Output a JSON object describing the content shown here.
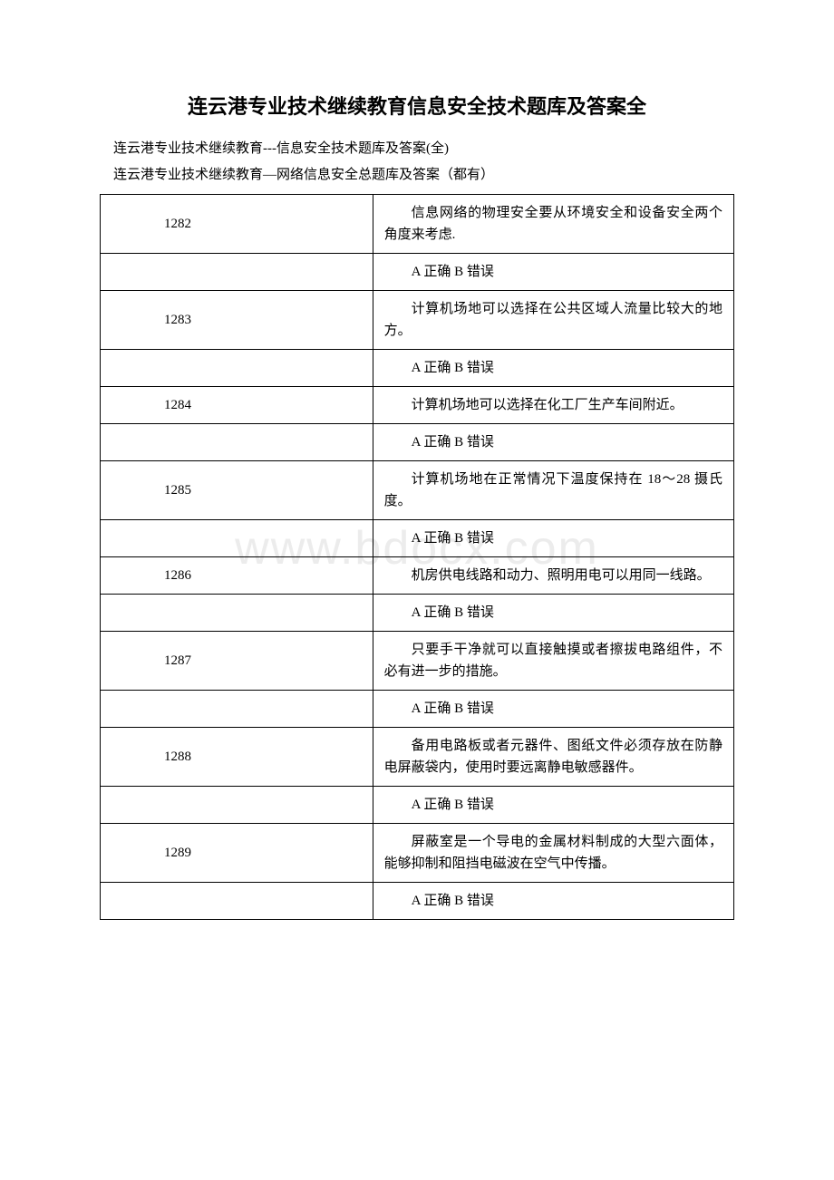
{
  "title": "连云港专业技术继续教育信息安全技术题库及答案全",
  "subtitle1": "连云港专业技术继续教育---信息安全技术题库及答案(全)",
  "subtitle2": "连云港专业技术继续教育—网络信息安全总题库及答案（都有）",
  "watermark": "www.bdocx.com",
  "answer_label": "A 正确 B 错误",
  "rows": [
    {
      "num": "1282",
      "question": "信息网络的物理安全要从环境安全和设备安全两个角度来考虑."
    },
    {
      "num": "1283",
      "question": "计算机场地可以选择在公共区域人流量比较大的地方。"
    },
    {
      "num": "1284",
      "question": "计算机场地可以选择在化工厂生产车间附近。"
    },
    {
      "num": "1285",
      "question": "计算机场地在正常情况下温度保持在 18～28 摄氏度。"
    },
    {
      "num": "1286",
      "question": "机房供电线路和动力、照明用电可以用同一线路。"
    },
    {
      "num": "1287",
      "question": "只要手干净就可以直接触摸或者擦拔电路组件，不必有进一步的措施。"
    },
    {
      "num": "1288",
      "question": "备用电路板或者元器件、图纸文件必须存放在防静电屏蔽袋内，使用时要远离静电敏感器件。"
    },
    {
      "num": "1289",
      "question": "屏蔽室是一个导电的金属材料制成的大型六面体，能够抑制和阻挡电磁波在空气中传播。"
    }
  ]
}
